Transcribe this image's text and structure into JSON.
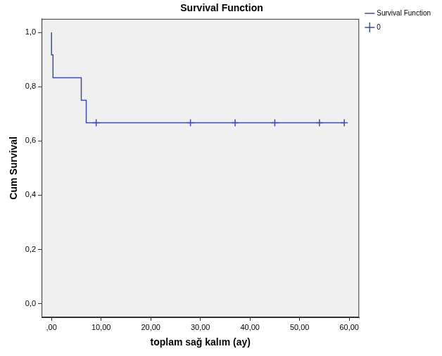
{
  "chart_data": {
    "type": "line",
    "title": "Survival Function",
    "x_label": "toplam sağ kalım (ay)",
    "y_label": "Cum Survival",
    "series": [
      {
        "name": "Survival Function",
        "type": "line",
        "line_style": "step",
        "color": "#3d4f9f",
        "x": [
          0,
          0.3,
          6,
          7,
          8,
          59
        ],
        "values": [
          1,
          0.917,
          0.833,
          0.75,
          0.667,
          0.667
        ]
      },
      {
        "name": "0",
        "type": "scatter",
        "marker": "cross",
        "color": "#3d4f9f",
        "x": [
          9,
          28,
          37,
          45,
          54,
          59
        ],
        "values": [
          0.667,
          0.667,
          0.667,
          0.667,
          0.667,
          0.667
        ]
      }
    ],
    "xlim": [
      -2,
      62
    ],
    "xticks": [
      {
        "value": 0,
        "label": ",00"
      },
      {
        "value": 10,
        "label": "10,00"
      },
      {
        "value": 20,
        "label": "20,00"
      },
      {
        "value": 30,
        "label": "30,00"
      },
      {
        "value": 40,
        "label": "40,00"
      },
      {
        "value": 50,
        "label": "50,00"
      },
      {
        "value": 60,
        "label": "60,00"
      }
    ],
    "ylim": [
      -0.05,
      1.05
    ],
    "yticks": [
      {
        "value": 0,
        "label": "0,0"
      },
      {
        "value": 0.2,
        "label": "0,2"
      },
      {
        "value": 0.4,
        "label": "0,4"
      },
      {
        "value": 0.6,
        "label": "0,6"
      },
      {
        "value": 0.8,
        "label": "0,8"
      },
      {
        "value": 1,
        "label": "1,0"
      }
    ],
    "grid": false,
    "legend": "right"
  }
}
